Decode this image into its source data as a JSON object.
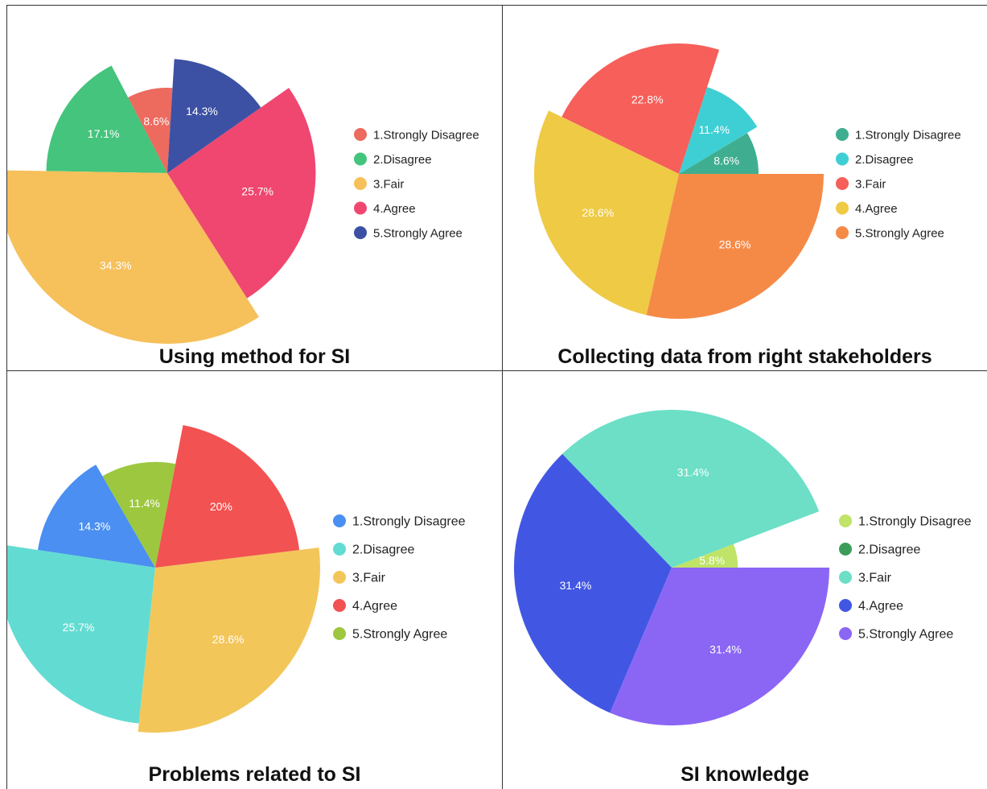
{
  "chart_data": [
    {
      "type": "pie",
      "variant": "rose",
      "title": "Using method for SI",
      "legend_position": "right",
      "start_angle_deg": 86.5,
      "slices": [
        {
          "label": "1.Strongly Disagree",
          "value": 8.6,
          "value_label": "8.6%",
          "radius_rel": 0.5,
          "color": "#ed6a5e"
        },
        {
          "label": "2.Disagree",
          "value": 17.1,
          "value_label": "17.1%",
          "radius_rel": 0.71,
          "color": "#44c47c"
        },
        {
          "label": "3.Fair",
          "value": 34.3,
          "value_label": "34.3%",
          "radius_rel": 1.0,
          "color": "#f6c05a"
        },
        {
          "label": "4.Agree",
          "value": 25.7,
          "value_label": "25.7%",
          "radius_rel": 0.87,
          "color": "#ef476f"
        },
        {
          "label": "5.Strongly Agree",
          "value": 14.3,
          "value_label": "14.3%",
          "radius_rel": 0.67,
          "color": "#3c51a4"
        }
      ]
    },
    {
      "type": "pie",
      "variant": "rose",
      "title": "Collecting data from right stakeholders",
      "legend_position": "right",
      "start_angle_deg": 0,
      "slices": [
        {
          "label": "1.Strongly Disagree",
          "value": 8.6,
          "value_label": "8.6%",
          "radius_rel": 0.55,
          "color": "#3fae90"
        },
        {
          "label": "2.Disagree",
          "value": 11.4,
          "value_label": "11.4%",
          "radius_rel": 0.63,
          "color": "#3ecfd4"
        },
        {
          "label": "3.Fair",
          "value": 22.8,
          "value_label": "22.8%",
          "radius_rel": 0.9,
          "color": "#f65f5a"
        },
        {
          "label": "4.Agree",
          "value": 28.6,
          "value_label": "28.6%",
          "radius_rel": 1.0,
          "color": "#efca44"
        },
        {
          "label": "5.Strongly Agree",
          "value": 28.6,
          "value_label": "28.6%",
          "radius_rel": 1.0,
          "color": "#f58a47"
        }
      ]
    },
    {
      "type": "pie",
      "variant": "rose",
      "title": "Problems related to SI",
      "legend_position": "right",
      "start_angle_deg": 120,
      "slices": [
        {
          "label": "1.Strongly Disagree",
          "value": 14.3,
          "value_label": "14.3%",
          "radius_rel": 0.72,
          "color": "#4a8ff1"
        },
        {
          "label": "2.Disagree",
          "value": 25.7,
          "value_label": "25.7%",
          "radius_rel": 0.95,
          "color": "#62dcd2"
        },
        {
          "label": "3.Fair",
          "value": 28.6,
          "value_label": "28.6%",
          "radius_rel": 1.0,
          "color": "#f3c65a"
        },
        {
          "label": "4.Agree",
          "value": 20.0,
          "value_label": "20%",
          "radius_rel": 0.88,
          "color": "#f25251"
        },
        {
          "label": "5.Strongly Agree",
          "value": 11.4,
          "value_label": "11.4%",
          "radius_rel": 0.64,
          "color": "#9dc73f"
        }
      ]
    },
    {
      "type": "pie",
      "variant": "rose",
      "title": "SI knowledge",
      "legend_position": "right",
      "start_angle_deg": 0,
      "slices": [
        {
          "label": "1.Strongly Disagree",
          "value": 5.8,
          "value_label": "5.8%",
          "radius_rel": 0.42,
          "color": "#bfe468"
        },
        {
          "label": "2.Disagree",
          "value": 0,
          "value_label": "",
          "radius_rel": 0.2,
          "color": "#3d9c5a"
        },
        {
          "label": "3.Fair",
          "value": 31.4,
          "value_label": "31.4%",
          "radius_rel": 1.0,
          "color": "#6cdfc6"
        },
        {
          "label": "4.Agree",
          "value": 31.4,
          "value_label": "31.4%",
          "radius_rel": 1.0,
          "color": "#4157e3"
        },
        {
          "label": "5.Strongly Agree",
          "value": 31.4,
          "value_label": "31.4%",
          "radius_rel": 1.0,
          "color": "#8b66f5"
        }
      ]
    }
  ]
}
